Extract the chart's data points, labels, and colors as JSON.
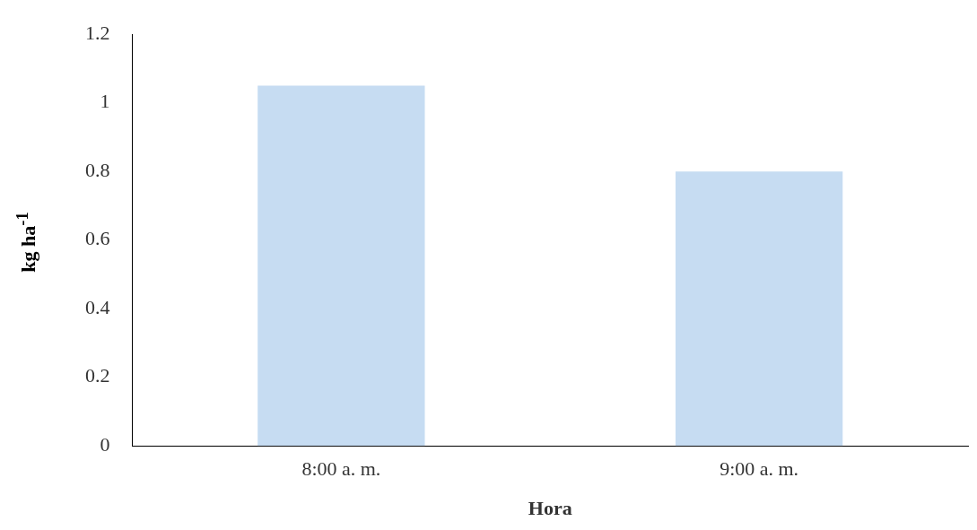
{
  "chart_data": {
    "type": "bar",
    "xlabel": "Hora",
    "ylabel": "kg ha$^{-1}$",
    "categories": [
      "8:00 a. m.",
      "9:00 a. m."
    ],
    "values": [
      1.05,
      0.8
    ],
    "color": "#c6dcf2",
    "ylim": [
      0,
      1.2
    ],
    "yticks": [
      0,
      0.2,
      0.4,
      0.6,
      0.8,
      1,
      1.2
    ],
    "grid": false
  }
}
